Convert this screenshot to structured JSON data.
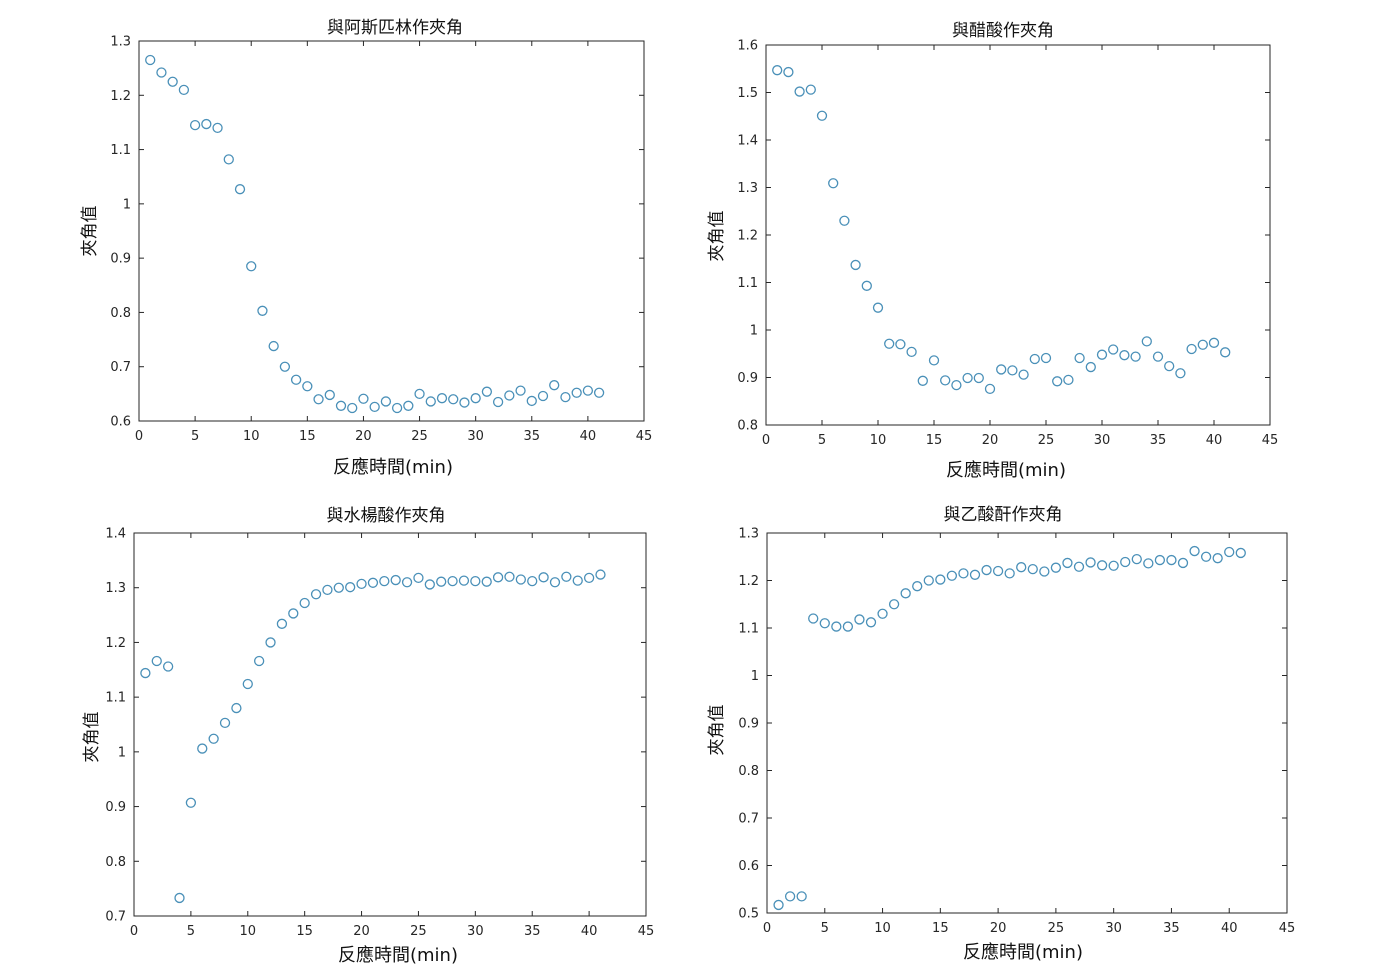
{
  "colors": {
    "marker": "#4a90b8",
    "axes": "#262626"
  },
  "chart_data": [
    {
      "type": "scatter",
      "title": "與阿斯匹林作夾角",
      "xlabel": "反應時間(min)",
      "ylabel": "夾角值",
      "xlim": [
        0,
        45
      ],
      "ylim": [
        0.6,
        1.3
      ],
      "xticks": [
        0,
        5,
        10,
        15,
        20,
        25,
        30,
        35,
        40,
        45
      ],
      "yticks": [
        0.6,
        0.7,
        0.8,
        0.9,
        1,
        1.1,
        1.2,
        1.3
      ],
      "x": [
        1,
        2,
        3,
        4,
        5,
        6,
        7,
        8,
        9,
        10,
        11,
        12,
        13,
        14,
        15,
        16,
        17,
        18,
        19,
        20,
        21,
        22,
        23,
        24,
        25,
        26,
        27,
        28,
        29,
        30,
        31,
        32,
        33,
        34,
        35,
        36,
        37,
        38,
        39,
        40,
        41
      ],
      "y": [
        1.265,
        1.242,
        1.225,
        1.21,
        1.145,
        1.147,
        1.14,
        1.082,
        1.027,
        0.885,
        0.803,
        0.738,
        0.7,
        0.676,
        0.664,
        0.64,
        0.648,
        0.628,
        0.624,
        0.641,
        0.626,
        0.636,
        0.624,
        0.628,
        0.65,
        0.636,
        0.642,
        0.64,
        0.634,
        0.642,
        0.654,
        0.635,
        0.647,
        0.656,
        0.637,
        0.646,
        0.666,
        0.644,
        0.652,
        0.656,
        0.652
      ]
    },
    {
      "type": "scatter",
      "title": "與醋酸作夾角",
      "xlabel": "反應時間(min)",
      "ylabel": "夾角值",
      "xlim": [
        0,
        45
      ],
      "ylim": [
        0.8,
        1.6
      ],
      "xticks": [
        0,
        5,
        10,
        15,
        20,
        25,
        30,
        35,
        40,
        45
      ],
      "yticks": [
        0.8,
        0.9,
        1,
        1.1,
        1.2,
        1.3,
        1.4,
        1.5,
        1.6
      ],
      "x": [
        1,
        2,
        3,
        4,
        5,
        6,
        7,
        8,
        9,
        10,
        11,
        12,
        13,
        14,
        15,
        16,
        17,
        18,
        19,
        20,
        21,
        22,
        23,
        24,
        25,
        26,
        27,
        28,
        29,
        30,
        31,
        32,
        33,
        34,
        35,
        36,
        37,
        38,
        39,
        40,
        41
      ],
      "y": [
        1.547,
        1.543,
        1.502,
        1.506,
        1.451,
        1.309,
        1.23,
        1.137,
        1.093,
        1.047,
        0.971,
        0.97,
        0.954,
        0.893,
        0.936,
        0.894,
        0.884,
        0.899,
        0.899,
        0.876,
        0.917,
        0.915,
        0.906,
        0.939,
        0.941,
        0.892,
        0.895,
        0.941,
        0.922,
        0.948,
        0.959,
        0.947,
        0.944,
        0.976,
        0.944,
        0.924,
        0.909,
        0.96,
        0.969,
        0.973,
        0.953
      ]
    },
    {
      "type": "scatter",
      "title": "與水楊酸作夾角",
      "xlabel": "反應時間(min)",
      "ylabel": "夾角值",
      "xlim": [
        0,
        45
      ],
      "ylim": [
        0.7,
        1.4
      ],
      "xticks": [
        0,
        5,
        10,
        15,
        20,
        25,
        30,
        35,
        40,
        45
      ],
      "yticks": [
        0.7,
        0.8,
        0.9,
        1,
        1.1,
        1.2,
        1.3,
        1.4
      ],
      "x": [
        1,
        2,
        3,
        4,
        5,
        6,
        7,
        8,
        9,
        10,
        11,
        12,
        13,
        14,
        15,
        16,
        17,
        18,
        19,
        20,
        21,
        22,
        23,
        24,
        25,
        26,
        27,
        28,
        29,
        30,
        31,
        32,
        33,
        34,
        35,
        36,
        37,
        38,
        39,
        40,
        41
      ],
      "y": [
        1.144,
        1.166,
        1.156,
        0.733,
        0.907,
        1.006,
        1.024,
        1.053,
        1.08,
        1.124,
        1.166,
        1.2,
        1.234,
        1.253,
        1.272,
        1.288,
        1.296,
        1.3,
        1.301,
        1.307,
        1.309,
        1.312,
        1.314,
        1.31,
        1.318,
        1.306,
        1.311,
        1.312,
        1.313,
        1.312,
        1.311,
        1.319,
        1.32,
        1.315,
        1.312,
        1.319,
        1.31,
        1.32,
        1.313,
        1.318,
        1.324
      ]
    },
    {
      "type": "scatter",
      "title": "與乙酸酐作夾角",
      "xlabel": "反應時間(min)",
      "ylabel": "夾角值",
      "xlim": [
        0,
        45
      ],
      "ylim": [
        0.5,
        1.3
      ],
      "xticks": [
        0,
        5,
        10,
        15,
        20,
        25,
        30,
        35,
        40,
        45
      ],
      "yticks": [
        0.5,
        0.6,
        0.7,
        0.8,
        0.9,
        1,
        1.1,
        1.2,
        1.3
      ],
      "x": [
        1,
        2,
        3,
        4,
        5,
        6,
        7,
        8,
        9,
        10,
        11,
        12,
        13,
        14,
        15,
        16,
        17,
        18,
        19,
        20,
        21,
        22,
        23,
        24,
        25,
        26,
        27,
        28,
        29,
        30,
        31,
        32,
        33,
        34,
        35,
        36,
        37,
        38,
        39,
        40,
        41
      ],
      "y": [
        0.517,
        0.535,
        0.535,
        1.12,
        1.11,
        1.103,
        1.103,
        1.118,
        1.112,
        1.13,
        1.15,
        1.173,
        1.188,
        1.2,
        1.202,
        1.21,
        1.215,
        1.212,
        1.222,
        1.22,
        1.215,
        1.228,
        1.224,
        1.219,
        1.227,
        1.237,
        1.229,
        1.238,
        1.232,
        1.231,
        1.239,
        1.245,
        1.236,
        1.243,
        1.243,
        1.237,
        1.262,
        1.25,
        1.247,
        1.26,
        1.258
      ]
    }
  ]
}
